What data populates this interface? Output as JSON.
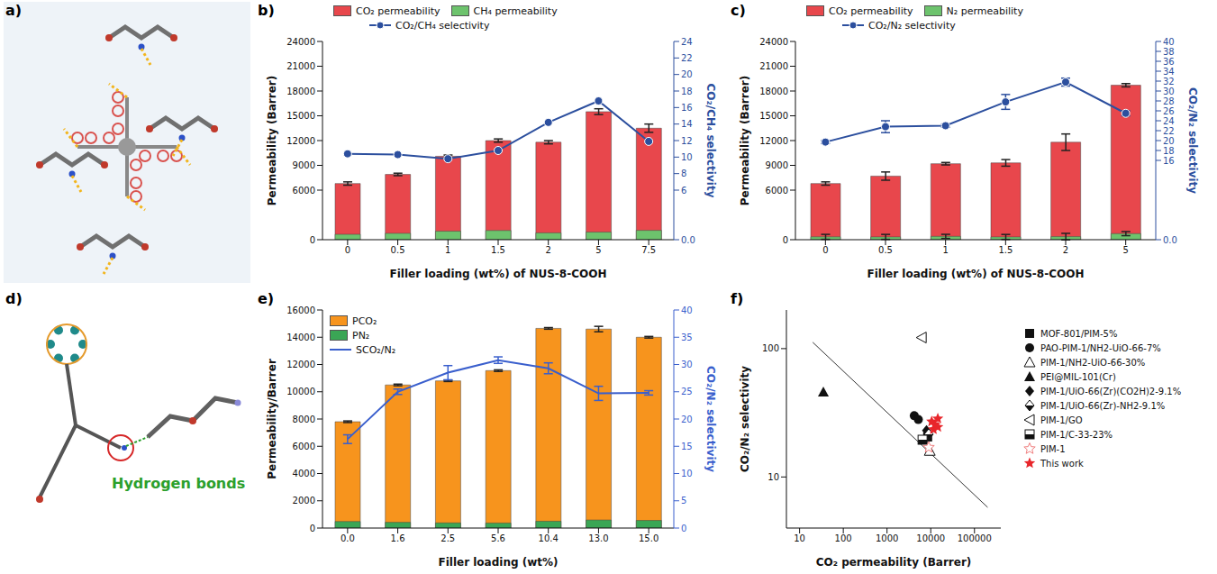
{
  "diagrams": [
    {
      "panel_label": "a)"
    },
    {
      "panel_label": "d)",
      "annotation": "Hydrogen bonds"
    }
  ],
  "chart_data": [
    {
      "panel_label": "b)",
      "type": "bar",
      "x_label": "Filler loading (wt%) of NUS-8-COOH",
      "y_label": "Permeability (Barrer)",
      "y2_label": "CO₂/CH₄ selectivity",
      "categories": [
        "0",
        "0.5",
        "1",
        "1.5",
        "2",
        "5",
        "7.5"
      ],
      "ylim": [
        0,
        24000
      ],
      "yticks": [
        0,
        6000,
        9000,
        12000,
        15000,
        18000,
        21000,
        24000
      ],
      "y2lim": [
        0,
        24
      ],
      "y2ticks": [
        {
          "value": 0,
          "label": "0.0"
        },
        6,
        8,
        10,
        12,
        14,
        16,
        18,
        20,
        22,
        24
      ],
      "legend": "top",
      "series": [
        {
          "name": "CO₂ permeability",
          "type": "bar",
          "color": "#e8474c",
          "values": [
            6800,
            7900,
            10100,
            12000,
            11800,
            15500,
            13500
          ],
          "errors": [
            200,
            150,
            150,
            200,
            200,
            350,
            500
          ]
        },
        {
          "name": "CH₄ permeability",
          "type": "bar",
          "color": "#6dc36d",
          "values": [
            650,
            770,
            1030,
            1110,
            830,
            920,
            1130
          ]
        },
        {
          "name": "CO₂/CH₄ selectivity",
          "type": "line",
          "axis": "y2",
          "color": "#2c4f9e",
          "marker": "circle",
          "values": [
            10.4,
            10.3,
            9.8,
            10.8,
            14.2,
            16.8,
            11.9
          ]
        }
      ]
    },
    {
      "panel_label": "c)",
      "type": "bar",
      "x_label": "Filler loading (wt%) of NUS-8-COOH",
      "y_label": "Permeability (Barrer)",
      "y2_label": "CO₂/N₂ selectivity",
      "categories": [
        "0",
        "0.5",
        "1",
        "1.5",
        "2",
        "5"
      ],
      "ylim": [
        0,
        24000
      ],
      "yticks": [
        0,
        6000,
        9000,
        12000,
        15000,
        18000,
        21000,
        24000
      ],
      "y2lim": [
        0,
        40
      ],
      "y2ticks": [
        {
          "value": 0,
          "label": "0.0"
        },
        16,
        18,
        20,
        22,
        24,
        26,
        28,
        30,
        32,
        34,
        36,
        38,
        40
      ],
      "legend": "top",
      "series": [
        {
          "name": "CO₂ permeability",
          "type": "bar",
          "color": "#e8474c",
          "values": [
            6800,
            7700,
            9200,
            9300,
            11800,
            18700
          ],
          "errors": [
            200,
            500,
            150,
            400,
            1000,
            200
          ]
        },
        {
          "name": "N₂ permeability",
          "type": "bar",
          "color": "#6dc36d",
          "values": [
            345,
            340,
            400,
            335,
            370,
            735
          ],
          "errors": [
            300,
            300,
            250,
            300,
            400,
            250
          ]
        },
        {
          "name": "CO₂/N₂ selectivity",
          "type": "line",
          "axis": "y2",
          "color": "#2c4f9e",
          "marker": "circle",
          "values": [
            19.7,
            22.8,
            23.0,
            27.8,
            31.8,
            25.5
          ],
          "errors": [
            0.3,
            1.2,
            0.3,
            1.5,
            0.8,
            0.5
          ]
        }
      ]
    },
    {
      "panel_label": "e)",
      "type": "bar",
      "x_label": "Filler loading (wt%)",
      "y_label": "Permeability/Barrer",
      "y2_label": "CO₂/N₂ selectivity",
      "categories": [
        "0.0",
        "1.6",
        "2.5",
        "5.6",
        "10.4",
        "13.0",
        "15.0"
      ],
      "ylim": [
        0,
        16000
      ],
      "yticks": [
        0,
        2000,
        4000,
        6000,
        8000,
        10000,
        12000,
        14000,
        16000
      ],
      "y2lim": [
        0,
        40
      ],
      "y2ticks": [
        0,
        5,
        10,
        15,
        20,
        25,
        30,
        35,
        40
      ],
      "legend": "upper left",
      "series": [
        {
          "name": "PCO₂",
          "type": "bar",
          "color": "#f7941d",
          "values": [
            7800,
            10500,
            10800,
            11550,
            14650,
            14600,
            14000
          ],
          "errors": [
            60,
            60,
            50,
            60,
            60,
            200,
            60
          ]
        },
        {
          "name": "PN₂",
          "type": "bar",
          "color": "#3aa655",
          "values": [
            480,
            420,
            380,
            370,
            500,
            590,
            560
          ]
        },
        {
          "name": "SCO₂/N₂",
          "type": "line",
          "axis": "y2",
          "color": "#3a5fcd",
          "values": [
            16.3,
            25.0,
            28.5,
            30.8,
            29.3,
            24.7,
            24.8
          ],
          "errors": [
            0.8,
            0.5,
            1.3,
            0.6,
            1.0,
            1.3,
            0.4
          ]
        }
      ]
    },
    {
      "panel_label": "f)",
      "type": "scatter",
      "log": true,
      "x_label": "CO₂ permeability (Barrer)",
      "y_label": "CO₂/N₂ selectivity",
      "xlim": [
        5,
        400000
      ],
      "xticks": [
        10,
        100,
        1000,
        10000,
        100000
      ],
      "ylim": [
        4,
        200
      ],
      "yticks": [
        10,
        100
      ],
      "legend": "right",
      "line": {
        "x": [
          20,
          200000
        ],
        "values": [
          112,
          5.8
        ]
      },
      "series": [
        {
          "name": "MOF-801/PIM-5%",
          "color": "#111111",
          "marker": "square",
          "x": [
            8500
          ],
          "values": [
            20.5
          ]
        },
        {
          "name": "PAO-PIM-1/NH2-UiO-66-7%",
          "color": "#111111",
          "marker": "circle",
          "x": [
            4200,
            5200
          ],
          "values": [
            30,
            28
          ]
        },
        {
          "name": "PIM-1/NH2-UiO-66-30%",
          "color": "#111111",
          "marker": "triangle-open",
          "x": [
            9500
          ],
          "values": [
            16
          ]
        },
        {
          "name": "PEI@MIL-101(Cr)",
          "color": "#111111",
          "marker": "triangle",
          "x": [
            35
          ],
          "values": [
            46
          ]
        },
        {
          "name": "PIM-1/UiO-66(Zr)(CO2H)2-9.1%",
          "color": "#111111",
          "marker": "diamond",
          "x": [
            8000
          ],
          "values": [
            23
          ]
        },
        {
          "name": "PIM-1/UiO-66(Zr)-NH2-9.1%",
          "color": "#111111",
          "marker": "diamond-half",
          "x": [
            9000
          ],
          "values": [
            21.5
          ]
        },
        {
          "name": "PIM-1/GO",
          "color": "#111111",
          "marker": "triangle-left-open",
          "x": [
            6200
          ],
          "values": [
            122
          ]
        },
        {
          "name": "PIM-1/C-33-23%",
          "color": "#111111",
          "marker": "square-half",
          "x": [
            6500
          ],
          "values": [
            19.5
          ]
        },
        {
          "name": "PIM-1",
          "color": "#f08080",
          "marker": "star-open",
          "x": [
            9000
          ],
          "values": [
            17
          ]
        },
        {
          "name": "This work",
          "color": "#e8262b",
          "marker": "star",
          "x": [
            10500,
            11500,
            12500,
            14500,
            14500
          ],
          "values": [
            27,
            23.5,
            25.5,
            24.5,
            28.5
          ]
        }
      ]
    }
  ]
}
